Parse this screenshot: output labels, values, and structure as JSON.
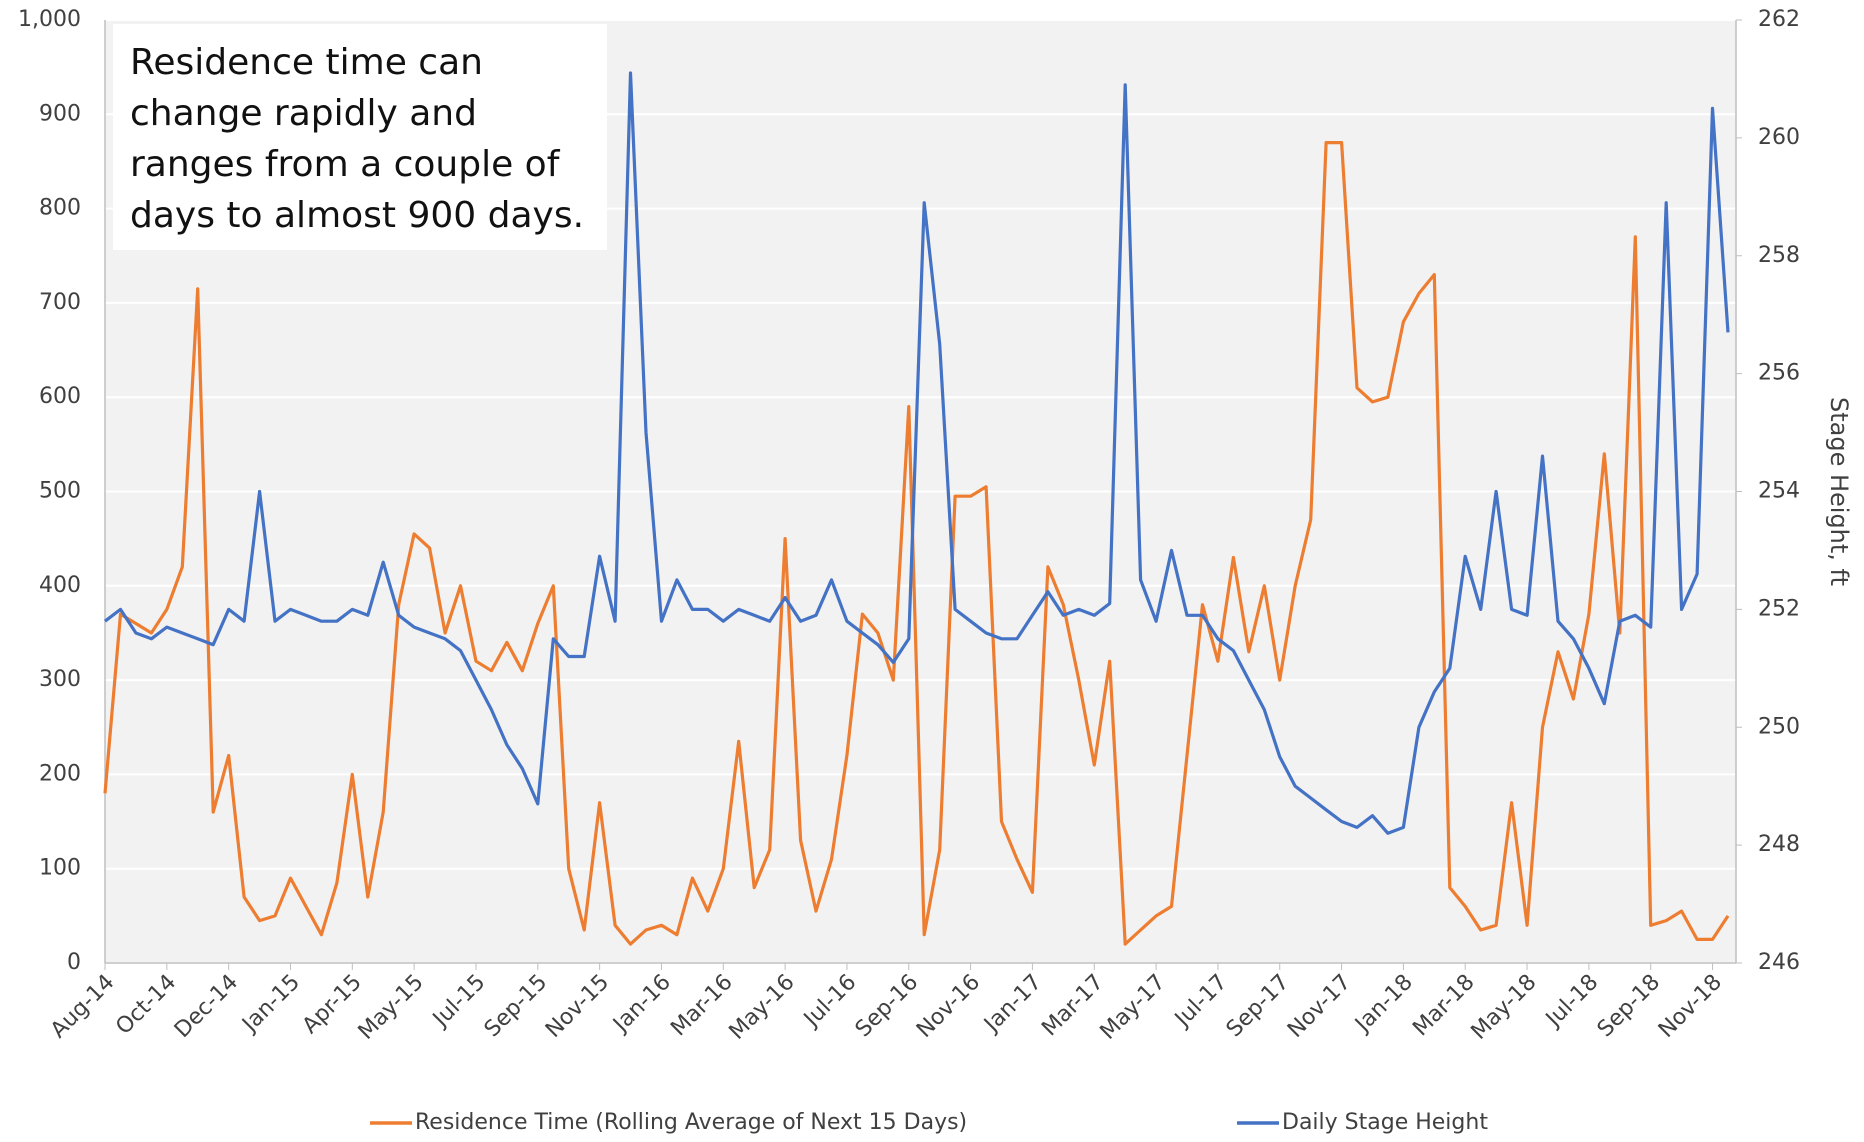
{
  "chart_data": {
    "type": "line",
    "annotation": [
      "Residence time can",
      "change rapidly and",
      "ranges from a couple of",
      "days to almost 900 days."
    ],
    "y2_label": "Stage Height, ft",
    "legend_position": "bottom",
    "grid": true,
    "categories": [
      "Aug-14",
      null,
      null,
      null,
      "Oct-14",
      null,
      null,
      null,
      "Dec-14",
      null,
      null,
      null,
      "Jan-15",
      null,
      null,
      null,
      "Apr-15",
      null,
      null,
      null,
      "May-15",
      null,
      null,
      null,
      "Jul-15",
      null,
      null,
      null,
      "Sep-15",
      null,
      null,
      null,
      "Nov-15",
      null,
      null,
      null,
      "Jan-16",
      null,
      null,
      null,
      "Mar-16",
      null,
      null,
      null,
      "May-16",
      null,
      null,
      null,
      "Jul-16",
      null,
      null,
      null,
      "Sep-16",
      null,
      null,
      null,
      "Nov-16",
      null,
      null,
      null,
      "Jan-17",
      null,
      null,
      null,
      "Mar-17",
      null,
      null,
      null,
      "May-17",
      null,
      null,
      null,
      "Jul-17",
      null,
      null,
      null,
      "Sep-17",
      null,
      null,
      null,
      "Nov-17",
      null,
      null,
      null,
      "Jan-18",
      null,
      null,
      null,
      "Mar-18",
      null,
      null,
      null,
      "May-18",
      null,
      null,
      null,
      "Jul-18",
      null,
      null,
      null,
      "Sep-18",
      null,
      null,
      null,
      "Nov-18",
      null
    ],
    "ylim": [
      0,
      1000
    ],
    "yticks": [
      0,
      100,
      200,
      300,
      400,
      500,
      600,
      700,
      800,
      900,
      {
        "value": 1000,
        "label": "1,000"
      }
    ],
    "y2lim": [
      246,
      262
    ],
    "y2ticks": [
      246,
      248,
      250,
      252,
      254,
      256,
      258,
      260,
      262
    ],
    "series": [
      {
        "name": "Residence Time (Rolling Average of Next 15 Days)",
        "color": "#ed7d31",
        "values": [
          180,
          370,
          360,
          350,
          375,
          420,
          715,
          160,
          220,
          70,
          45,
          50,
          90,
          60,
          30,
          85,
          200,
          70,
          160,
          380,
          455,
          440,
          350,
          400,
          320,
          310,
          340,
          310,
          360,
          400,
          100,
          35,
          170,
          40,
          20,
          35,
          40,
          30,
          90,
          55,
          100,
          235,
          80,
          120,
          450,
          130,
          55,
          110,
          220,
          370,
          350,
          300,
          590,
          30,
          120,
          495,
          495,
          505,
          150,
          110,
          75,
          420,
          380,
          300,
          210,
          320,
          20,
          35,
          50,
          60,
          220,
          380,
          320,
          430,
          330,
          400,
          300,
          400,
          470,
          870,
          870,
          610,
          595,
          600,
          680,
          710,
          730,
          80,
          60,
          35,
          40,
          170,
          40,
          250,
          330,
          280,
          370,
          540,
          350,
          770,
          40,
          45,
          55,
          25,
          25,
          50
        ]
      },
      {
        "name": "Daily Stage Height",
        "color": "#4472c4",
        "axis": "y2",
        "values": [
          251.8,
          252.0,
          251.6,
          251.5,
          251.7,
          251.6,
          251.5,
          251.4,
          252.0,
          251.8,
          254.0,
          251.8,
          252.0,
          251.9,
          251.8,
          251.8,
          252.0,
          251.9,
          252.8,
          251.9,
          251.7,
          251.6,
          251.5,
          251.3,
          250.8,
          250.3,
          249.7,
          249.3,
          248.7,
          251.5,
          251.2,
          251.2,
          252.9,
          251.8,
          261.1,
          255.0,
          251.8,
          252.5,
          252.0,
          252.0,
          251.8,
          252.0,
          251.9,
          251.8,
          252.2,
          251.8,
          251.9,
          252.5,
          251.8,
          251.6,
          251.4,
          251.1,
          251.5,
          258.9,
          256.5,
          252.0,
          251.8,
          251.6,
          251.5,
          251.5,
          251.9,
          252.3,
          251.9,
          252.0,
          251.9,
          252.1,
          260.9,
          252.5,
          251.8,
          253.0,
          251.9,
          251.9,
          251.5,
          251.3,
          250.8,
          250.3,
          249.5,
          249.0,
          248.8,
          248.6,
          248.4,
          248.3,
          248.5,
          248.2,
          248.3,
          250.0,
          250.6,
          251.0,
          252.9,
          252.0,
          254.0,
          252.0,
          251.9,
          254.6,
          251.8,
          251.5,
          251.0,
          250.4,
          251.8,
          251.9,
          251.7,
          258.9,
          252.0,
          252.6,
          260.5,
          256.7
        ]
      }
    ]
  }
}
